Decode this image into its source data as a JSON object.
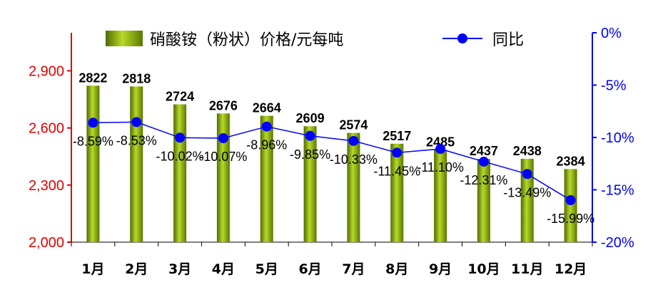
{
  "chart_data": {
    "type": "bar",
    "categories": [
      "1月",
      "2月",
      "3月",
      "4月",
      "5月",
      "6月",
      "7月",
      "8月",
      "9月",
      "10月",
      "11月",
      "12月"
    ],
    "series": [
      {
        "name": "硝酸铵（粉状）价格/元每吨",
        "type": "bar",
        "axis": "left",
        "values": [
          2822,
          2818,
          2724,
          2676,
          2664,
          2609,
          2574,
          2517,
          2485,
          2437,
          2438,
          2384
        ]
      },
      {
        "name": "同比",
        "type": "line",
        "axis": "right",
        "values": [
          -8.59,
          -8.53,
          -10.02,
          -10.07,
          -8.96,
          -9.85,
          -10.33,
          -11.45,
          -11.1,
          -12.31,
          -13.49,
          -15.99
        ]
      }
    ],
    "bar_labels": [
      "2822",
      "2818",
      "2724",
      "2676",
      "2664",
      "2609",
      "2574",
      "2517",
      "2485",
      "2437",
      "2438",
      "2384"
    ],
    "line_labels": [
      "-8.59%",
      "-8.53%",
      "-10.02%",
      "-10.07%",
      "-8.96%",
      "-9.85%",
      "-10.33%",
      "-11.45%",
      "-11.10%",
      "-12.31%",
      "-13.49%",
      "-15.99%"
    ],
    "left_axis": {
      "range": [
        2000,
        3100
      ],
      "ticks": [
        2000,
        2300,
        2600,
        2900
      ],
      "tick_labels": [
        "2,000",
        "2,300",
        "2,600",
        "2,900"
      ]
    },
    "right_axis": {
      "range": [
        -20,
        0
      ],
      "ticks": [
        -20,
        -15,
        -10,
        -5,
        0
      ],
      "tick_labels": [
        "-20%",
        "-15%",
        "-10%",
        "-5%",
        "0%"
      ]
    },
    "legend_position": "top",
    "grid": false,
    "colors": {
      "bar": "#8db000",
      "bar_dark": "#4f6a00",
      "line": "#0000ff",
      "left_axis": "#e00000",
      "right_axis": "#0000ff"
    }
  }
}
